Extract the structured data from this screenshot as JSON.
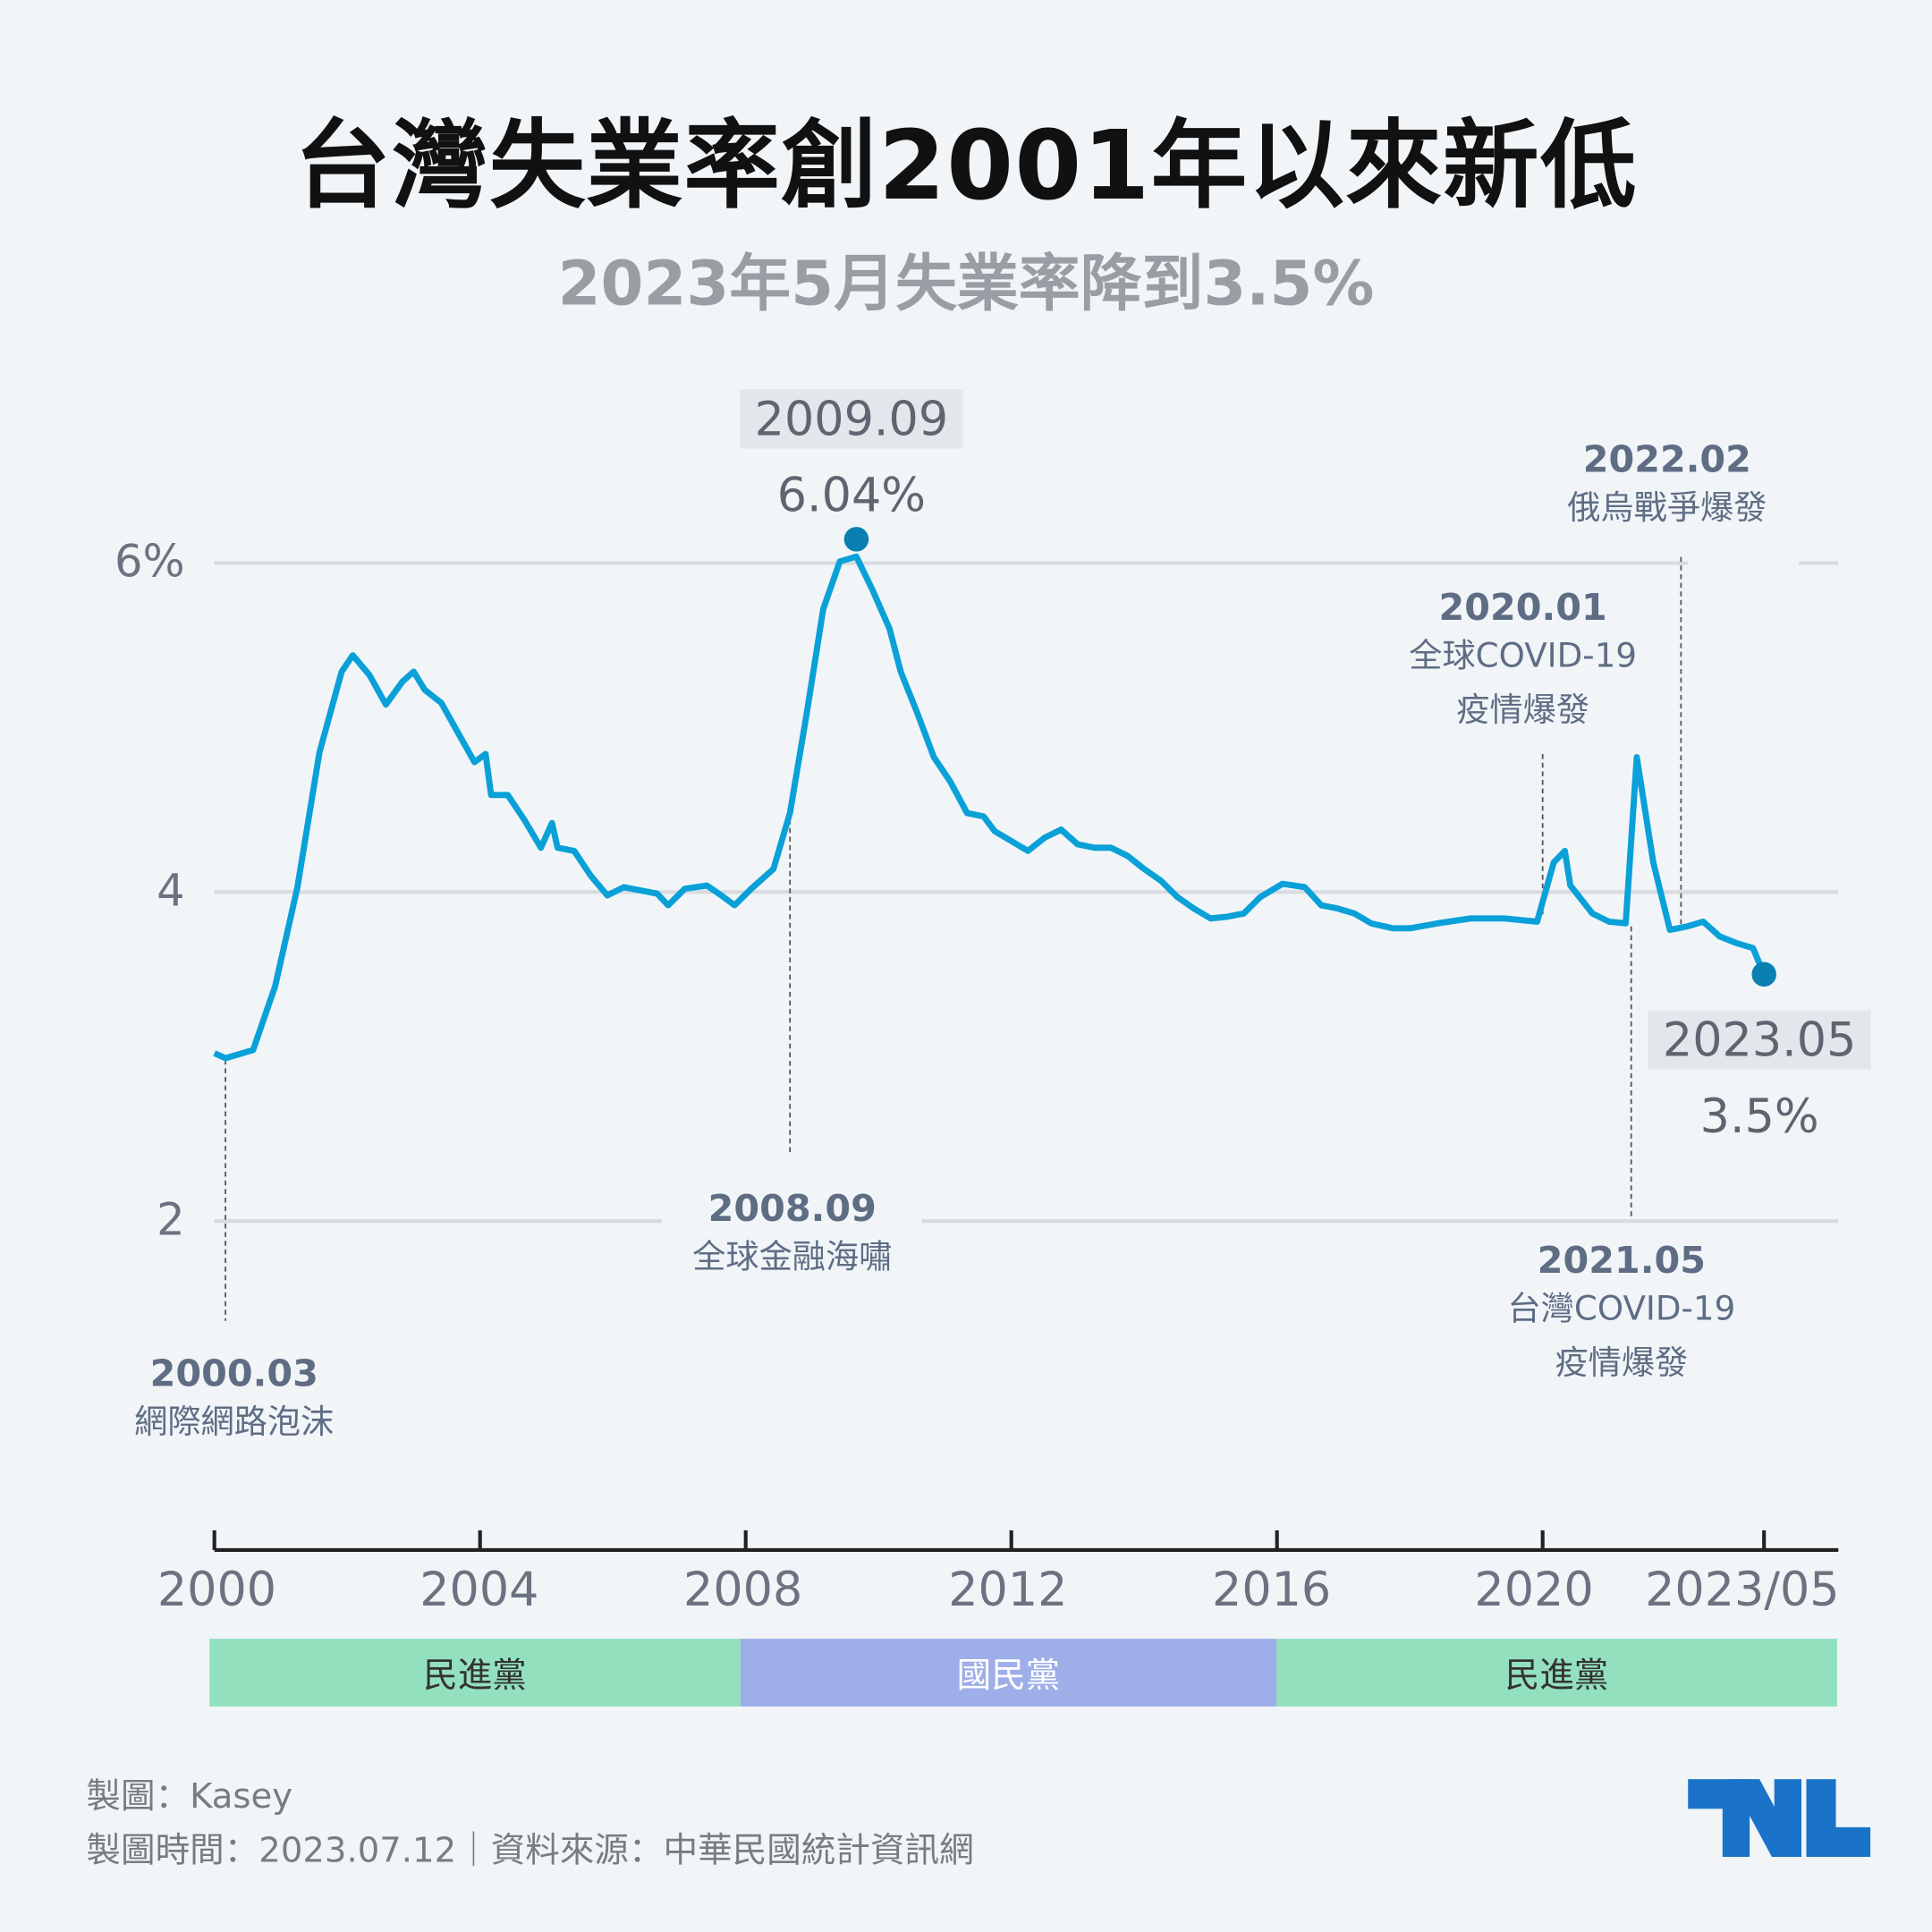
{
  "title": "台灣失業率創2001年以來新低",
  "subtitle": "2023年5月失業率降到3.5%",
  "chart_data": {
    "type": "line",
    "title": "台灣失業率創2001年以來新低",
    "subtitle": "2023年5月失業率降到3.5%",
    "ylim": [
      1.5,
      6.2
    ],
    "yticks": [
      {
        "value": 2,
        "label": "2"
      },
      {
        "value": 4,
        "label": "4"
      },
      {
        "value": 6,
        "label": "6%"
      }
    ],
    "xticks": [
      "2000",
      "2004",
      "2008",
      "2012",
      "2016",
      "2020",
      "2023/05"
    ],
    "grid": true,
    "line_color": "#0aa0d8",
    "series": [
      {
        "x": [
          "2000-01",
          "2000-03",
          "2000-08",
          "2000-12",
          "2001-04",
          "2001-08",
          "2001-12",
          "2002-02",
          "2002-05",
          "2002-08",
          "2002-11",
          "2003-01",
          "2003-03",
          "2003-06",
          "2003-09",
          "2003-12",
          "2004-02",
          "2004-03",
          "2004-06",
          "2004-09",
          "2004-12",
          "2005-02",
          "2005-03",
          "2005-06",
          "2005-09",
          "2005-12",
          "2006-03",
          "2006-06",
          "2006-09",
          "2006-11",
          "2007-02",
          "2007-06",
          "2007-09",
          "2007-11",
          "2008-02",
          "2008-06",
          "2008-09",
          "2008-12",
          "2009-03",
          "2009-06",
          "2009-09",
          "2009-12",
          "2010-03",
          "2010-05",
          "2010-08",
          "2010-11",
          "2011-02",
          "2011-05",
          "2011-08",
          "2011-10",
          "2012-01",
          "2012-04",
          "2012-07",
          "2012-10",
          "2013-01",
          "2013-04",
          "2013-07",
          "2013-10",
          "2014-01",
          "2014-04",
          "2014-07",
          "2014-10",
          "2015-01",
          "2015-04",
          "2015-07",
          "2015-10",
          "2016-02",
          "2016-06",
          "2016-09",
          "2016-12",
          "2017-03",
          "2017-06",
          "2017-10",
          "2018-01",
          "2018-06",
          "2018-12",
          "2019-06",
          "2019-12",
          "2020-03",
          "2020-05",
          "2020-06",
          "2020-10",
          "2021-01",
          "2021-04",
          "2021-06",
          "2021-09",
          "2021-12",
          "2022-03",
          "2022-06",
          "2022-09",
          "2022-12",
          "2023-03",
          "2023-05"
        ],
        "values": [
          3.02,
          2.99,
          3.04,
          3.43,
          4.03,
          4.85,
          5.34,
          5.44,
          5.32,
          5.14,
          5.28,
          5.34,
          5.23,
          5.15,
          4.97,
          4.79,
          4.84,
          4.59,
          4.59,
          4.44,
          4.27,
          4.42,
          4.27,
          4.25,
          4.1,
          3.98,
          4.03,
          4.01,
          3.99,
          3.92,
          4.02,
          4.04,
          3.97,
          3.92,
          4.02,
          4.14,
          4.48,
          5.08,
          5.72,
          6.01,
          6.04,
          5.83,
          5.6,
          5.34,
          5.09,
          4.82,
          4.67,
          4.48,
          4.46,
          4.37,
          4.31,
          4.25,
          4.33,
          4.38,
          4.29,
          4.27,
          4.27,
          4.22,
          4.14,
          4.07,
          3.97,
          3.9,
          3.84,
          3.85,
          3.87,
          3.97,
          4.05,
          4.03,
          3.92,
          3.9,
          3.87,
          3.81,
          3.78,
          3.78,
          3.81,
          3.84,
          3.84,
          3.82,
          4.18,
          4.25,
          4.04,
          3.87,
          3.82,
          3.81,
          4.82,
          4.18,
          3.77,
          3.79,
          3.82,
          3.73,
          3.69,
          3.66,
          3.5
        ]
      }
    ],
    "highlights": [
      {
        "date": "2009.09",
        "value": "6.04%",
        "x": "2009-09",
        "y": 6.04
      },
      {
        "date": "2023.05",
        "value": "3.5%",
        "x": "2023-05",
        "y": 3.5
      }
    ],
    "annotations": [
      {
        "date": "2000.03",
        "text": [
          "網際網路泡沫"
        ],
        "x": "2000-03"
      },
      {
        "date": "2008.09",
        "text": [
          "全球金融海嘯"
        ],
        "x": "2008-09"
      },
      {
        "date": "2020.01",
        "text": [
          "全球COVID-19",
          "疫情爆發"
        ],
        "x": "2020-01"
      },
      {
        "date": "2021.05",
        "text": [
          "台灣COVID-19",
          "疫情爆發"
        ],
        "x": "2021-05"
      },
      {
        "date": "2022.02",
        "text": [
          "俄烏戰爭爆發"
        ],
        "x": "2022-02"
      }
    ],
    "periods": [
      {
        "label": "民進黨",
        "from": "2000",
        "to": "2008",
        "color": "#93e0bf"
      },
      {
        "label": "國民黨",
        "from": "2008",
        "to": "2016",
        "color": "#9eaee8"
      },
      {
        "label": "民進黨",
        "from": "2016",
        "to": "2023/05",
        "color": "#93e0bf"
      }
    ]
  },
  "footer": {
    "author": "製圖：Kasey",
    "meta": "製圖時間：2023.07.12｜資料來源：中華民國統計資訊網",
    "logo": "TNL",
    "logo_color": "#1a73c8"
  }
}
